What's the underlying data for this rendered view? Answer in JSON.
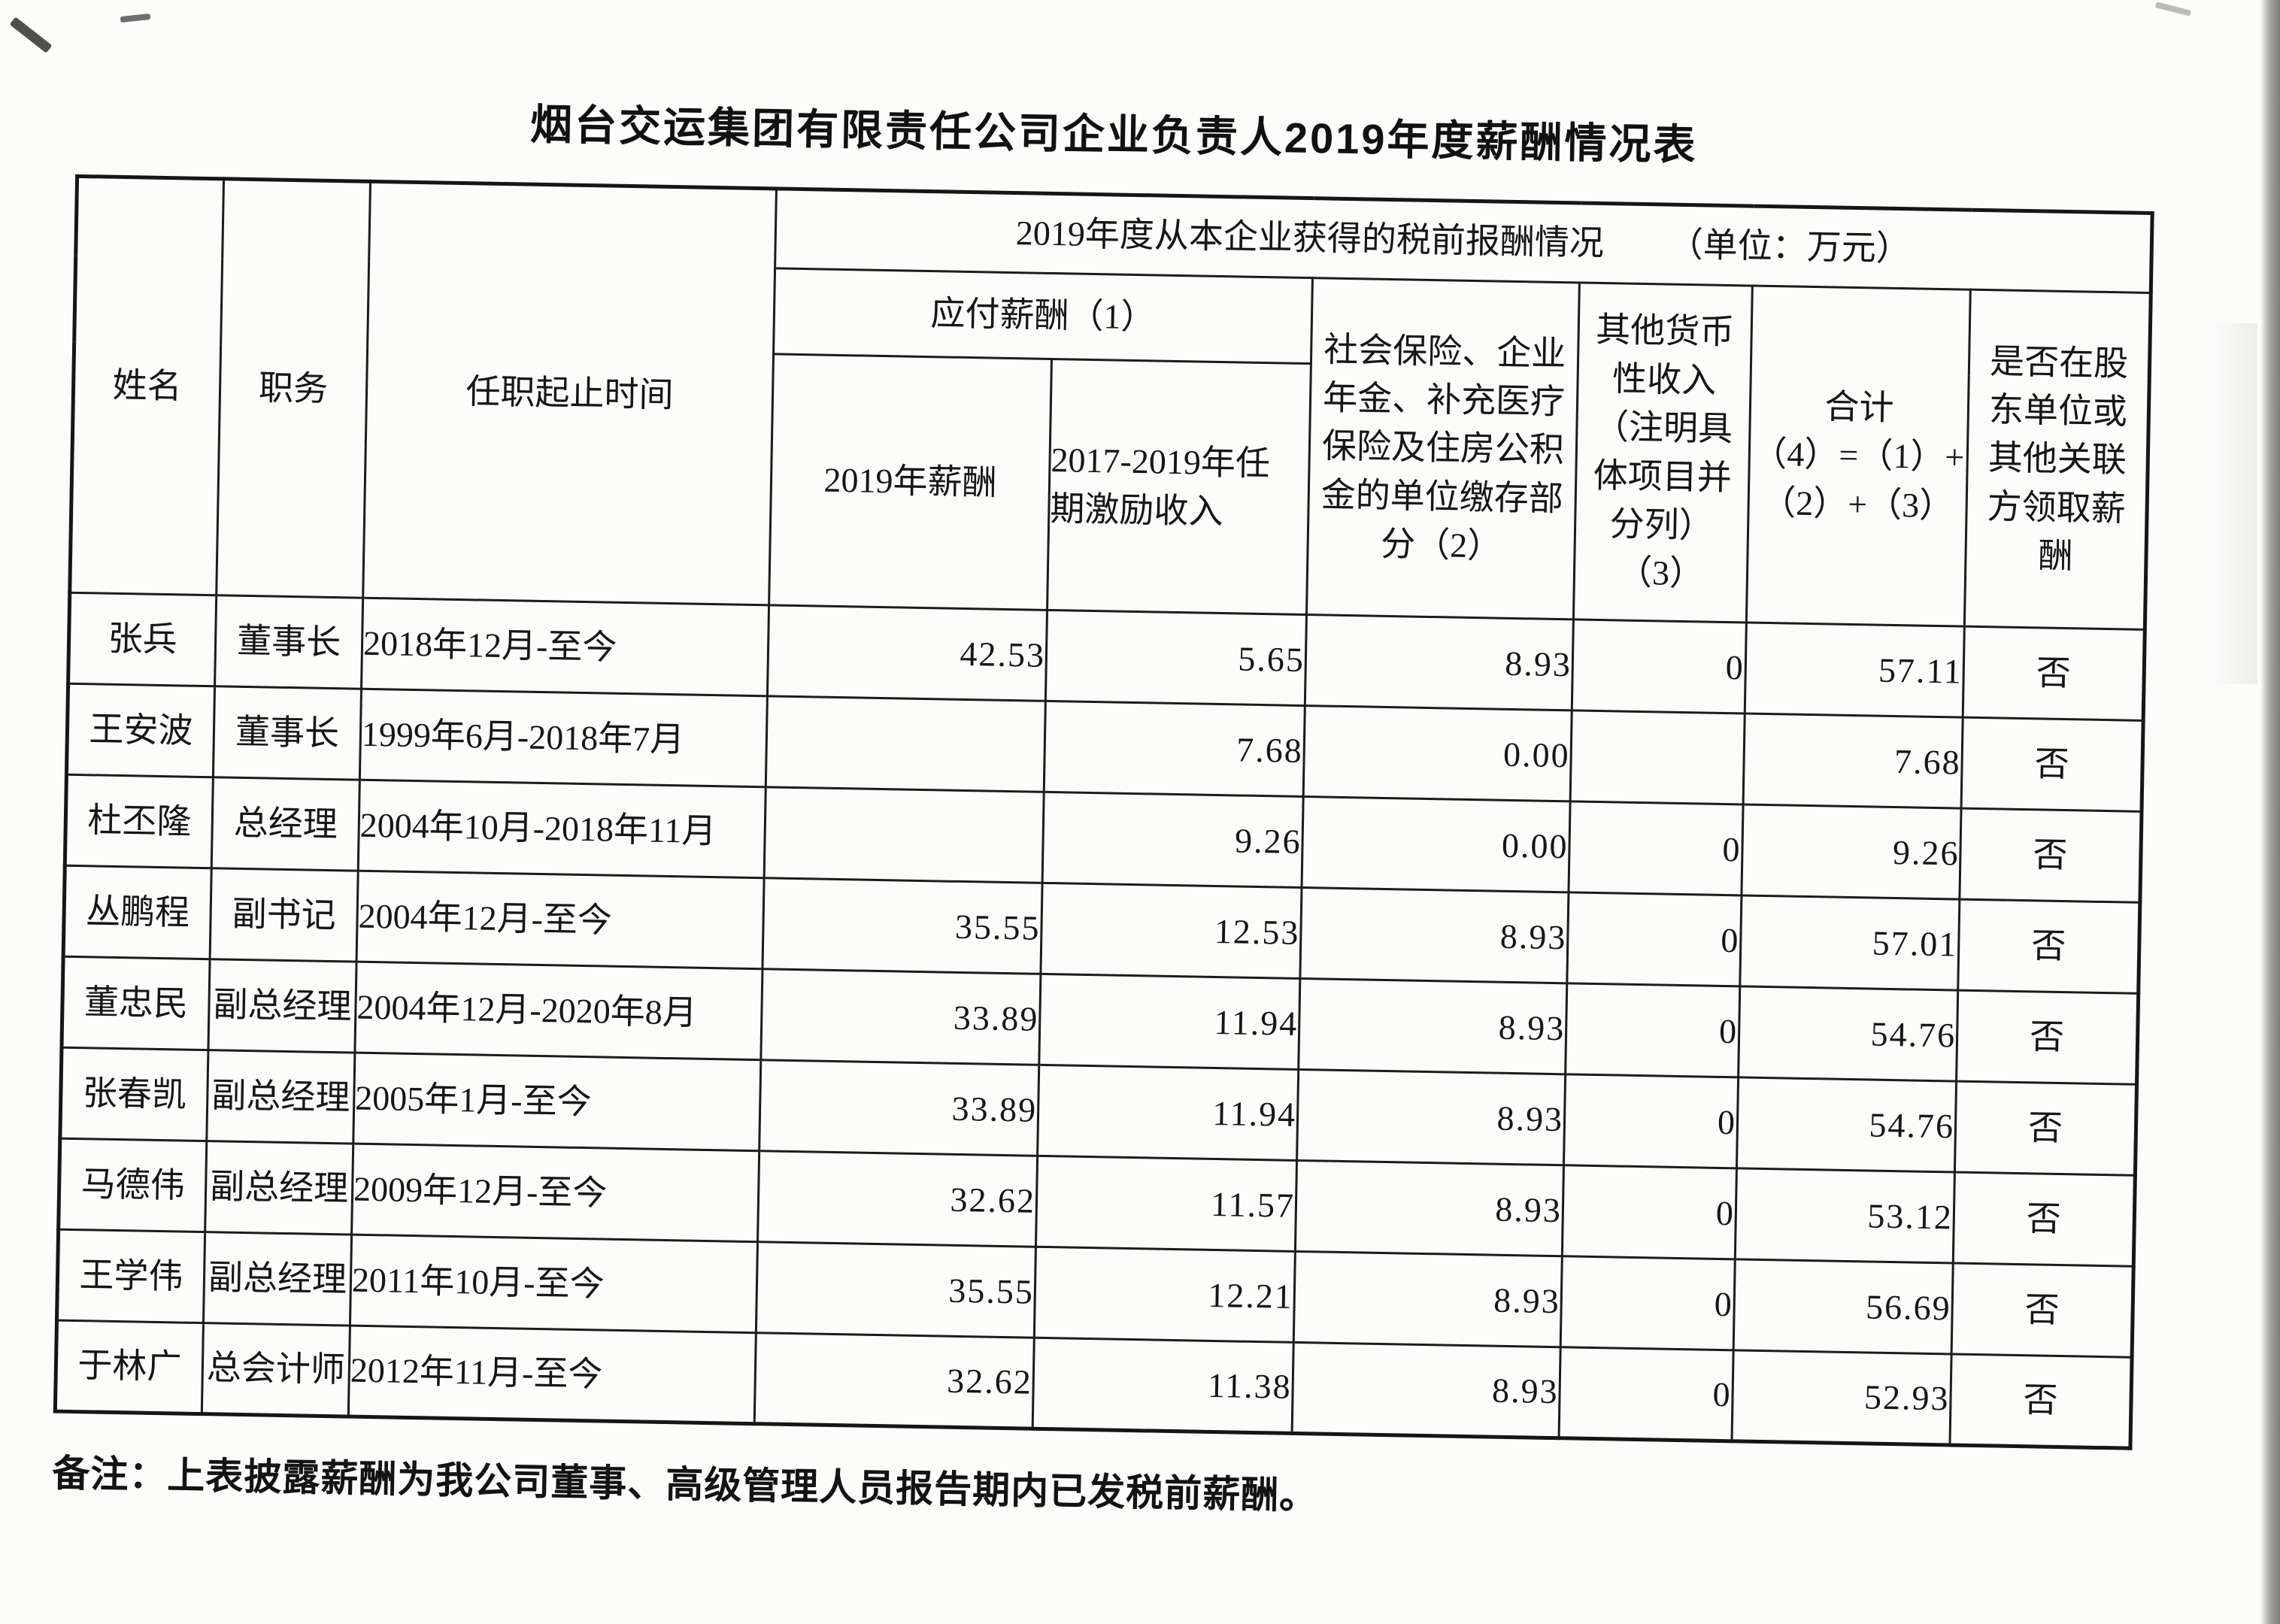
{
  "document": {
    "title": "烟台交运集团有限责任公司企业负责人2019年度薪酬情况表",
    "note": "备注：上表披露薪酬为我公司董事、高级管理人员报告期内已发税前薪酬。"
  },
  "table": {
    "header": {
      "name": "姓名",
      "position": "职务",
      "tenure": "任职起止时间",
      "group_title": "2019年度从本企业获得的税前报酬情况",
      "group_unit": "（单位：万元）",
      "payable": "应付薪酬（1）",
      "salary_2019": "2019年薪酬",
      "incentive_2017_2019": "2017-2019年任\n期激励收入",
      "social_insurance": "社会保险、企业\n年金、补充医疗\n保险及住房公积\n金的单位缴存部\n分（2）",
      "other_cash_income": "其他货币\n性收入\n（注明具\n体项目并\n分列）\n（3）",
      "total": "合计\n（4）=（1）+\n（2）+（3）",
      "related_party": "是否在股\n东单位或\n其他关联\n方领取薪\n酬"
    },
    "rows": [
      {
        "name": "张兵",
        "position": "董事长",
        "tenure": "2018年12月-至今",
        "salary": "42.53",
        "incentive": "5.65",
        "social": "8.93",
        "other": "0",
        "total": "57.11",
        "related": "否"
      },
      {
        "name": "王安波",
        "position": "董事长",
        "tenure": "1999年6月-2018年7月",
        "salary": "",
        "incentive": "7.68",
        "social": "0.00",
        "other": "",
        "total": "7.68",
        "related": "否"
      },
      {
        "name": "杜丕隆",
        "position": "总经理",
        "tenure": "2004年10月-2018年11月",
        "salary": "",
        "incentive": "9.26",
        "social": "0.00",
        "other": "0",
        "total": "9.26",
        "related": "否"
      },
      {
        "name": "丛鹏程",
        "position": "副书记",
        "tenure": "2004年12月-至今",
        "salary": "35.55",
        "incentive": "12.53",
        "social": "8.93",
        "other": "0",
        "total": "57.01",
        "related": "否"
      },
      {
        "name": "董忠民",
        "position": "副总经理",
        "tenure": "2004年12月-2020年8月",
        "salary": "33.89",
        "incentive": "11.94",
        "social": "8.93",
        "other": "0",
        "total": "54.76",
        "related": "否"
      },
      {
        "name": "张春凯",
        "position": "副总经理",
        "tenure": "2005年1月-至今",
        "salary": "33.89",
        "incentive": "11.94",
        "social": "8.93",
        "other": "0",
        "total": "54.76",
        "related": "否"
      },
      {
        "name": "马德伟",
        "position": "副总经理",
        "tenure": "2009年12月-至今",
        "salary": "32.62",
        "incentive": "11.57",
        "social": "8.93",
        "other": "0",
        "total": "53.12",
        "related": "否"
      },
      {
        "name": "王学伟",
        "position": "副总经理",
        "tenure": "2011年10月-至今",
        "salary": "35.55",
        "incentive": "12.21",
        "social": "8.93",
        "other": "0",
        "total": "56.69",
        "related": "否"
      },
      {
        "name": "于林广",
        "position": "总会计师",
        "tenure": "2012年11月-至今",
        "salary": "32.62",
        "incentive": "11.38",
        "social": "8.93",
        "other": "0",
        "total": "52.93",
        "related": "否"
      }
    ]
  }
}
